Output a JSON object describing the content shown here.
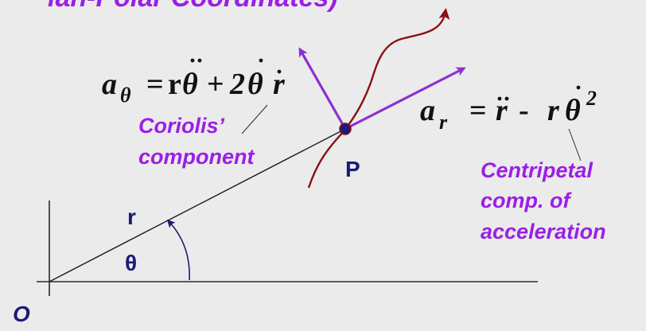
{
  "title_fragment": "lan-Polar Coordinates)",
  "colors": {
    "background": "#ebebeb",
    "accent_purple": "#9a1fe6",
    "vector_purple": "#8f2fd0",
    "path_red": "#8b0f0f",
    "navy": "#1a1a7a",
    "axis": "#2a2a2a"
  },
  "labels": {
    "origin": "O",
    "point": "P",
    "radius": "r",
    "angle": "θ",
    "coriolis_line1": "Coriolis’",
    "coriolis_line2": "component",
    "centripetal_line1": "Centripetal",
    "centripetal_line2": "comp. of",
    "centripetal_line3": "acceleration"
  },
  "equations": {
    "a_theta": {
      "symbol": "a",
      "subscript": "θ",
      "equals": "=",
      "r1": "r",
      "theta1": "θ",
      "plus": "+",
      "coef": "2",
      "theta2": "θ",
      "r2": "r"
    },
    "a_r": {
      "symbol": "a",
      "subscript": "r",
      "equals": "=",
      "r1": "r",
      "minus": "-",
      "r2": "r",
      "theta": "θ",
      "exponent": "2"
    }
  }
}
